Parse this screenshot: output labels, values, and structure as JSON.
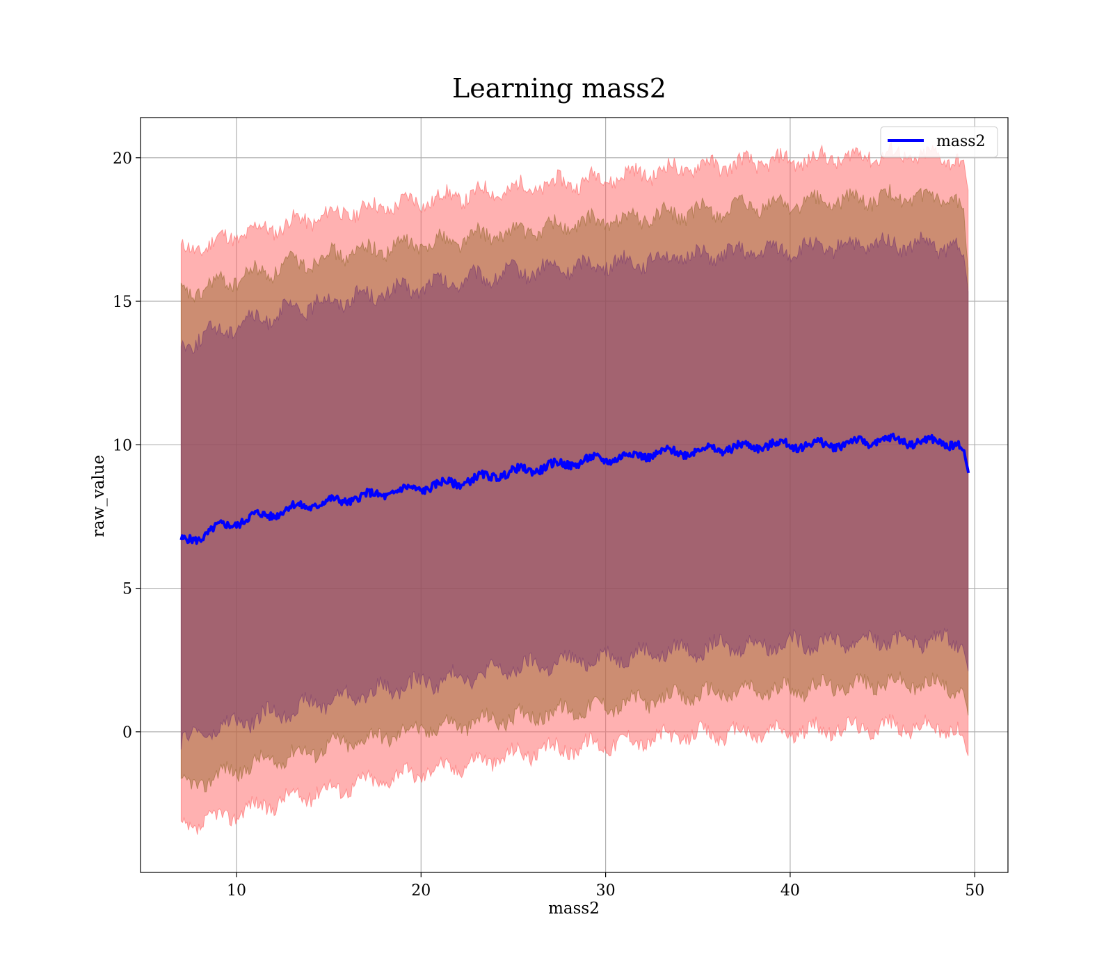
{
  "chart_data": {
    "type": "line",
    "title": "Learning mass2",
    "xlabel": "mass2",
    "ylabel": "raw_value",
    "xlim": [
      4.8,
      51.8
    ],
    "ylim": [
      -4.9,
      21.4
    ],
    "xticks": [
      10,
      20,
      30,
      40,
      50
    ],
    "yticks": [
      0,
      5,
      10,
      15,
      20
    ],
    "grid": true,
    "legend_position": "top-right",
    "series": [
      {
        "name": "mass2",
        "color": "#0000ff",
        "x": [
          7.0,
          8.0,
          9.0,
          10.0,
          11.0,
          12.0,
          13.0,
          14.0,
          15.0,
          16.0,
          17.0,
          18.0,
          19.0,
          20.0,
          21.0,
          22.0,
          23.0,
          24.0,
          25.0,
          26.0,
          27.0,
          28.0,
          29.0,
          30.0,
          31.0,
          32.0,
          33.0,
          34.0,
          35.0,
          36.0,
          37.0,
          38.0,
          39.0,
          40.0,
          41.0,
          42.0,
          43.0,
          44.0,
          45.0,
          46.0,
          47.0,
          48.0,
          49.0,
          49.4,
          49.7
        ],
        "y": [
          6.6,
          6.8,
          7.1,
          7.3,
          7.5,
          7.6,
          7.8,
          7.9,
          8.0,
          8.1,
          8.2,
          8.3,
          8.4,
          8.5,
          8.6,
          8.7,
          8.8,
          8.95,
          9.05,
          9.15,
          9.25,
          9.35,
          9.45,
          9.5,
          9.6,
          9.65,
          9.7,
          9.75,
          9.8,
          9.85,
          9.9,
          9.95,
          10.0,
          10.0,
          10.0,
          10.0,
          10.05,
          10.1,
          10.15,
          10.15,
          10.1,
          10.1,
          10.05,
          9.8,
          8.85
        ]
      }
    ],
    "bands": [
      {
        "color": "#ff6464",
        "x": [
          7.0,
          10.0,
          15.0,
          20.0,
          25.0,
          30.0,
          35.0,
          40.0,
          45.0,
          49.0,
          49.4,
          49.7
        ],
        "upper": [
          16.7,
          17.3,
          18.0,
          18.5,
          18.9,
          19.3,
          19.7,
          19.9,
          20.1,
          20.0,
          19.8,
          18.6
        ],
        "lower": [
          -3.4,
          -2.8,
          -2.0,
          -1.4,
          -0.8,
          -0.4,
          -0.1,
          0.0,
          0.2,
          0.1,
          -0.3,
          -1.1
        ]
      },
      {
        "color": "#9a6a33",
        "x": [
          7.0,
          10.0,
          15.0,
          20.0,
          25.0,
          30.0,
          35.0,
          40.0,
          45.0,
          49.0,
          49.4,
          49.7
        ],
        "upper": [
          15.2,
          15.8,
          16.6,
          17.0,
          17.4,
          17.8,
          18.1,
          18.4,
          18.6,
          18.5,
          18.1,
          15.5
        ],
        "lower": [
          -2.0,
          -1.3,
          -0.5,
          0.1,
          0.5,
          0.9,
          1.3,
          1.5,
          1.7,
          1.6,
          1.4,
          0.3
        ]
      },
      {
        "color": "#7a3a6e",
        "x": [
          7.0,
          10.0,
          15.0,
          20.0,
          25.0,
          30.0,
          35.0,
          40.0,
          45.0,
          49.0,
          49.4,
          49.7
        ],
        "upper": [
          13.5,
          14.2,
          15.0,
          15.5,
          16.0,
          16.3,
          16.6,
          16.8,
          17.0,
          16.9,
          16.5,
          15.0
        ],
        "lower": [
          -0.3,
          0.3,
          1.1,
          1.7,
          2.2,
          2.6,
          2.9,
          3.1,
          3.2,
          3.2,
          3.0,
          2.0
        ]
      }
    ]
  }
}
